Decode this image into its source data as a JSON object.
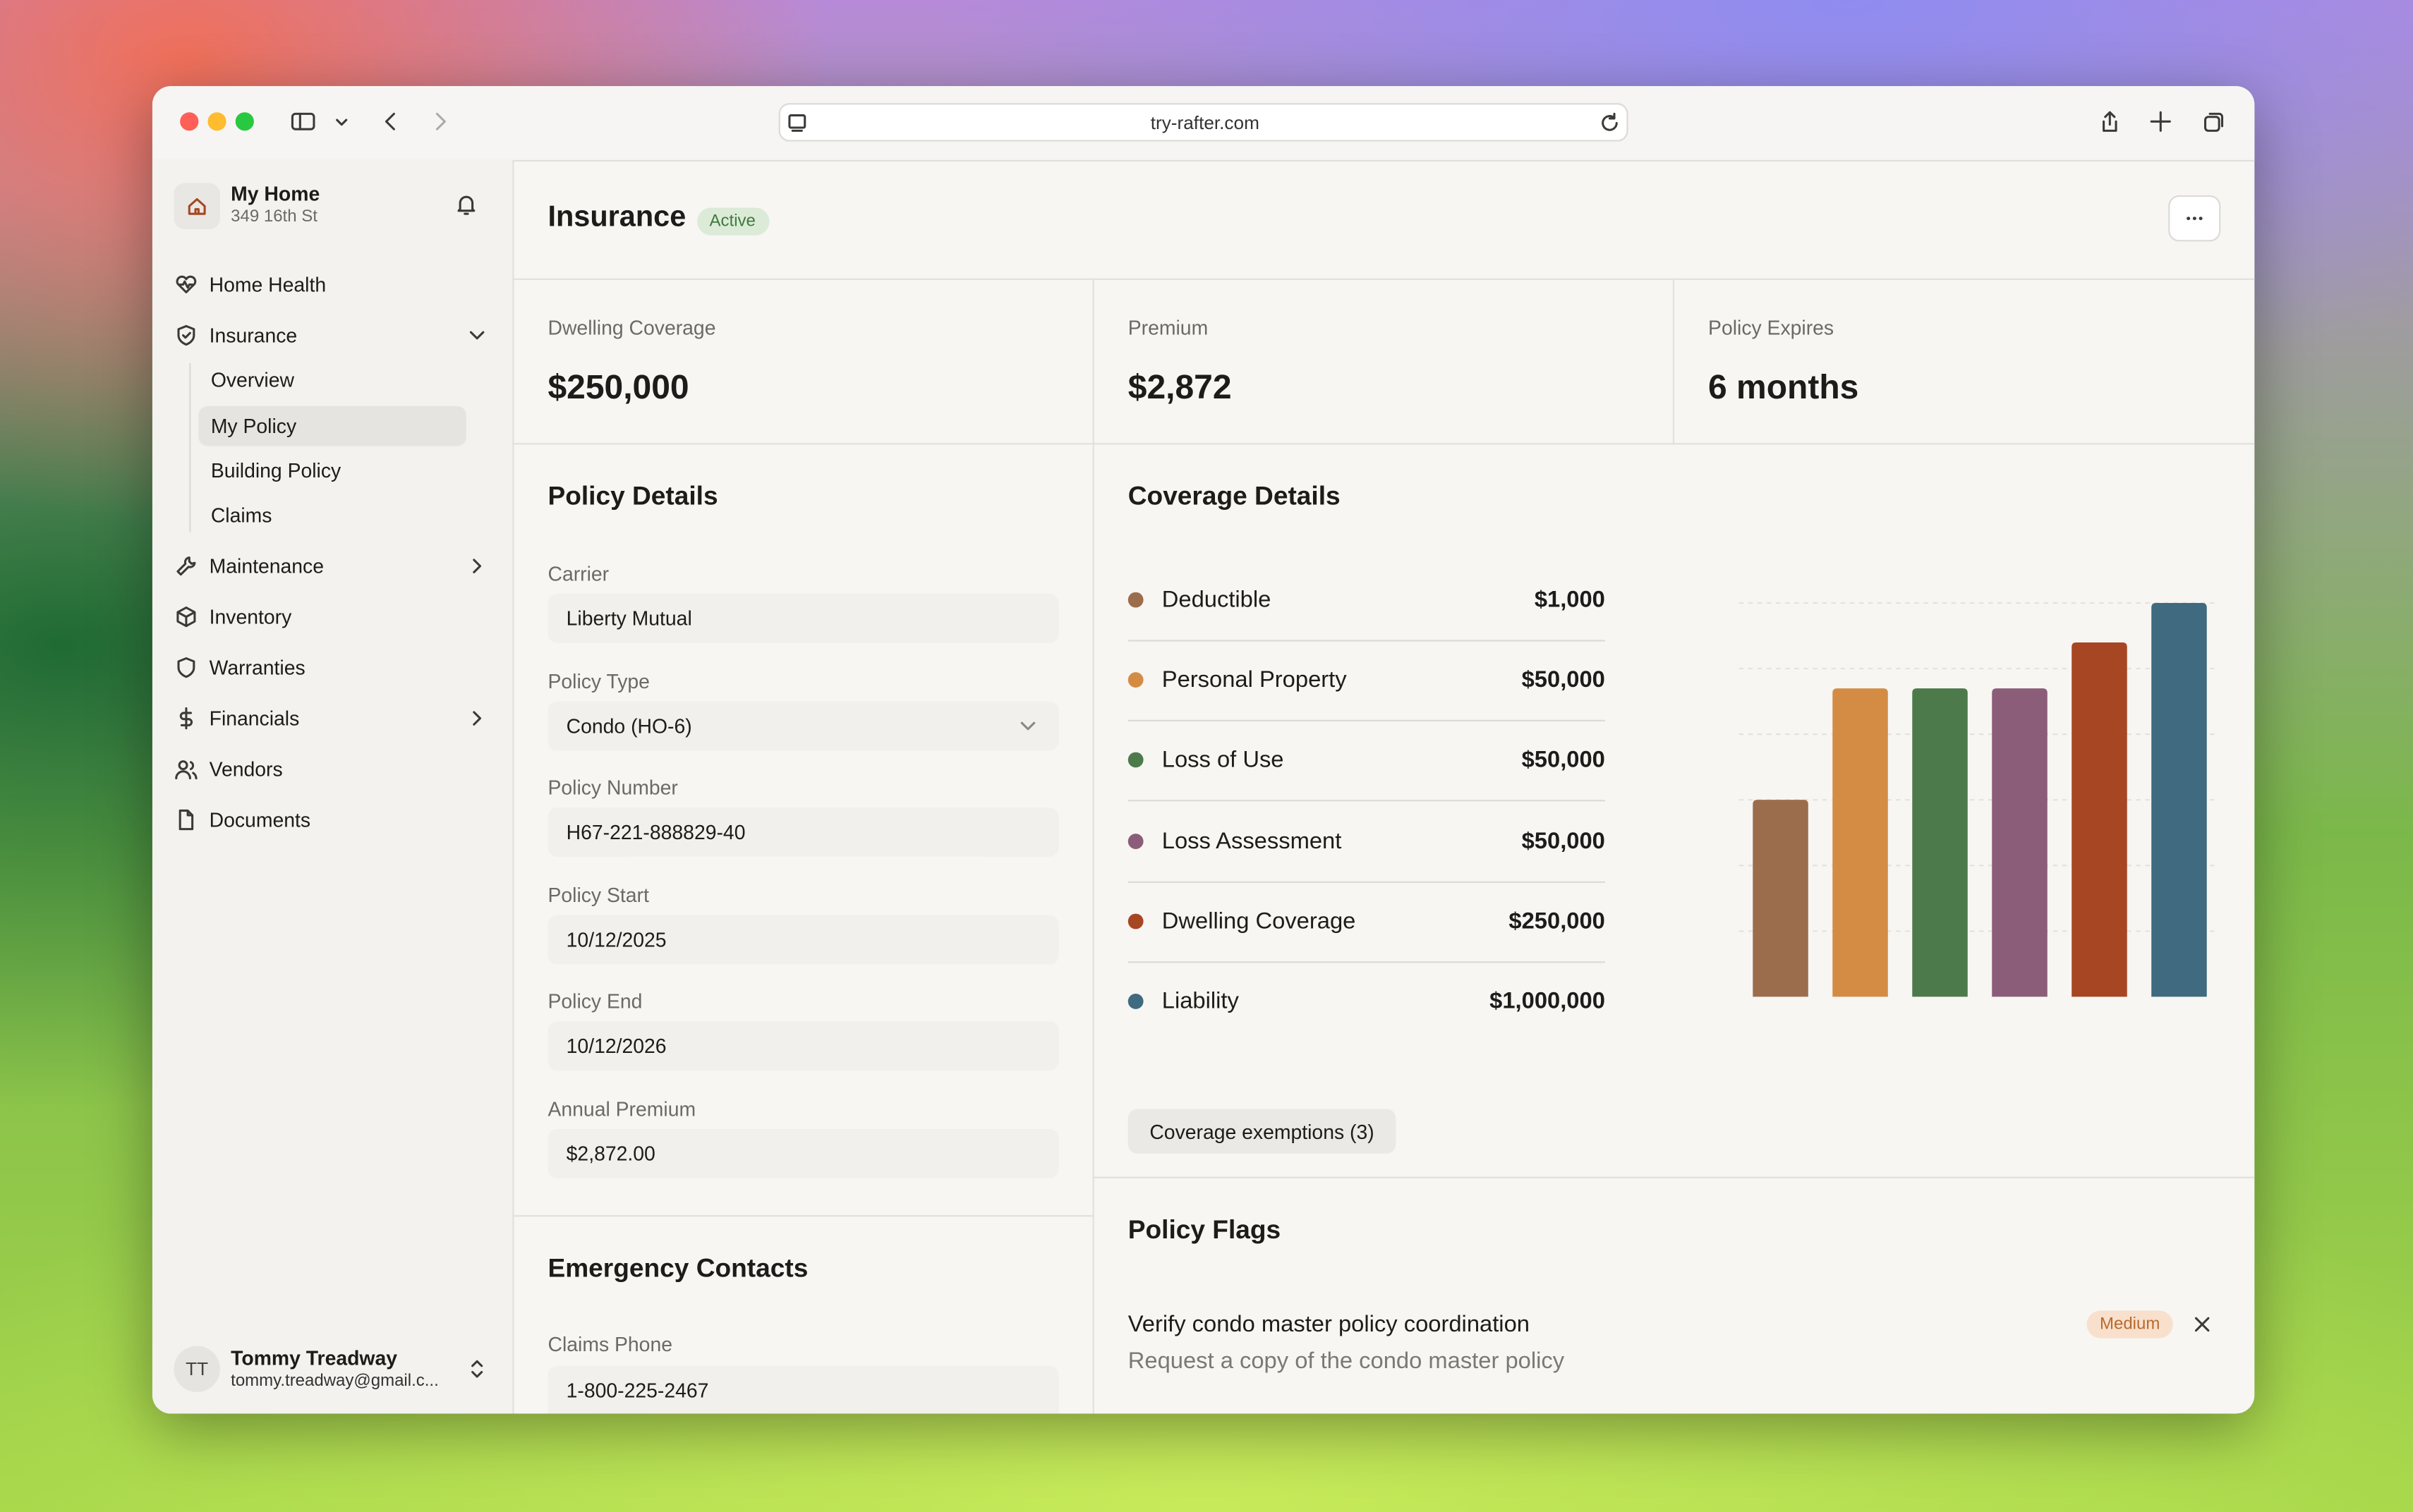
{
  "browser": {
    "url": "try-rafter.com"
  },
  "sidebar": {
    "home_title": "My Home",
    "home_address": "349 16th St",
    "nav": [
      "Home Health",
      "Insurance",
      "Overview",
      "My Policy",
      "Building Policy",
      "Claims",
      "Maintenance",
      "Inventory",
      "Warranties",
      "Financials",
      "Vendors",
      "Documents"
    ],
    "user_initials": "TT",
    "user_name": "Tommy Treadway",
    "user_email": "tommy.treadway@gmail.c..."
  },
  "header": {
    "title": "Insurance",
    "status": "Active"
  },
  "stats": [
    {
      "label": "Dwelling Coverage",
      "value": "$250,000"
    },
    {
      "label": "Premium",
      "value": "$2,872"
    },
    {
      "label": "Policy Expires",
      "value": "6 months"
    }
  ],
  "policy_details": {
    "title": "Policy Details",
    "fields": [
      {
        "label": "Carrier",
        "value": "Liberty Mutual"
      },
      {
        "label": "Policy Type",
        "value": "Condo (HO-6)"
      },
      {
        "label": "Policy Number",
        "value": "H67-221-888829-40"
      },
      {
        "label": "Policy Start",
        "value": "10/12/2025"
      },
      {
        "label": "Policy End",
        "value": "10/12/2026"
      },
      {
        "label": "Annual Premium",
        "value": "$2,872.00"
      }
    ]
  },
  "emergency_contacts": {
    "title": "Emergency Contacts",
    "fields": [
      {
        "label": "Claims Phone",
        "value": "1-800-225-2467"
      }
    ]
  },
  "coverage": {
    "title": "Coverage Details",
    "type": "bar",
    "names": [
      "Deductible",
      "Personal Property",
      "Loss of Use",
      "Loss Assessment",
      "Dwelling Coverage",
      "Liability"
    ],
    "values": [
      1000,
      50000,
      50000,
      50000,
      250000,
      1000000
    ],
    "value_labels": [
      "$1,000",
      "$50,000",
      "$50,000",
      "$50,000",
      "$250,000",
      "$1,000,000"
    ],
    "colors": [
      "#9c6d4c",
      "#d48c45",
      "#4d7a4a",
      "#8c5d78",
      "#a64622",
      "#3f6a80"
    ],
    "log_scale": true,
    "ylim": [
      1,
      1000000
    ],
    "yticks": [
      10,
      100,
      1000,
      10000,
      100000,
      1000000
    ],
    "grid": true,
    "button": "Coverage exemptions (3)"
  },
  "policy_flags": {
    "title": "Policy Flags",
    "items": [
      {
        "title": "Verify condo master policy coordination",
        "description": "Request a copy of the condo master policy",
        "severity": "Medium"
      }
    ]
  }
}
